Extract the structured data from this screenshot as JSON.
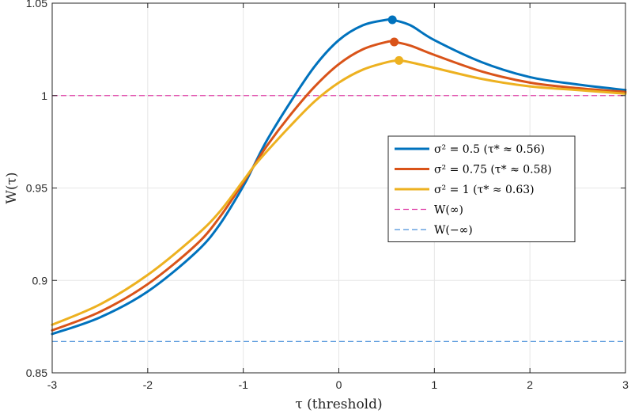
{
  "chart_data": {
    "type": "line",
    "xlabel": "τ (threshold)",
    "ylabel": "W(τ)",
    "xlim": [
      -3,
      3
    ],
    "ylim": [
      0.85,
      1.05
    ],
    "xticks": [
      -3,
      -2,
      -1,
      0,
      1,
      2,
      3
    ],
    "xtick_labels": [
      "-3",
      "-2",
      "-1",
      "0",
      "1",
      "2",
      "3"
    ],
    "yticks": [
      0.85,
      0.9,
      0.95,
      1.0,
      1.05
    ],
    "ytick_labels": [
      "0.85",
      "0.9",
      "0.95",
      "1",
      "1.05"
    ],
    "grid": true,
    "legend_position": "center-right",
    "series": [
      {
        "name": "σ² = 0.5 (τ* ≈ 0.56)",
        "color": "#0072BD",
        "style": "solid",
        "x": [
          -3,
          -2.5,
          -2,
          -1.5,
          -1.25,
          -1,
          -0.9,
          -0.75,
          -0.5,
          -0.25,
          0,
          0.25,
          0.5,
          0.56,
          0.75,
          1,
          1.5,
          2,
          2.5,
          3
        ],
        "y": [
          0.871,
          0.88,
          0.894,
          0.915,
          0.93,
          0.951,
          0.961,
          0.976,
          0.997,
          1.016,
          1.03,
          1.038,
          1.041,
          1.041,
          1.038,
          1.03,
          1.018,
          1.01,
          1.006,
          1.003
        ],
        "peak": {
          "x": 0.56,
          "y": 1.041
        }
      },
      {
        "name": "σ² = 0.75 (τ* ≈ 0.58)",
        "color": "#D95319",
        "style": "solid",
        "x": [
          -3,
          -2.5,
          -2,
          -1.5,
          -1.25,
          -1,
          -0.9,
          -0.75,
          -0.5,
          -0.25,
          0,
          0.25,
          0.5,
          0.58,
          0.75,
          1,
          1.5,
          2,
          2.5,
          3
        ],
        "y": [
          0.873,
          0.883,
          0.898,
          0.919,
          0.934,
          0.953,
          0.961,
          0.973,
          0.99,
          1.005,
          1.017,
          1.025,
          1.029,
          1.029,
          1.027,
          1.022,
          1.013,
          1.007,
          1.004,
          1.002
        ],
        "peak": {
          "x": 0.58,
          "y": 1.029
        }
      },
      {
        "name": "σ² = 1 (τ* ≈ 0.63)",
        "color": "#EDB120",
        "style": "solid",
        "x": [
          -3,
          -2.5,
          -2,
          -1.5,
          -1.25,
          -1,
          -0.9,
          -0.75,
          -0.5,
          -0.25,
          0,
          0.25,
          0.5,
          0.63,
          0.75,
          1,
          1.5,
          2,
          2.5,
          3
        ],
        "y": [
          0.876,
          0.887,
          0.903,
          0.924,
          0.937,
          0.954,
          0.961,
          0.97,
          0.984,
          0.997,
          1.007,
          1.014,
          1.018,
          1.019,
          1.018,
          1.015,
          1.009,
          1.005,
          1.003,
          1.001
        ],
        "peak": {
          "x": 0.63,
          "y": 1.019
        }
      }
    ],
    "reference_lines": [
      {
        "name": "W(∞)",
        "y": 1.0,
        "color": "#E040A8",
        "style": "dashed"
      },
      {
        "name": "W(−∞)",
        "y": 0.867,
        "color": "#4A90D9",
        "style": "dashed"
      }
    ]
  }
}
